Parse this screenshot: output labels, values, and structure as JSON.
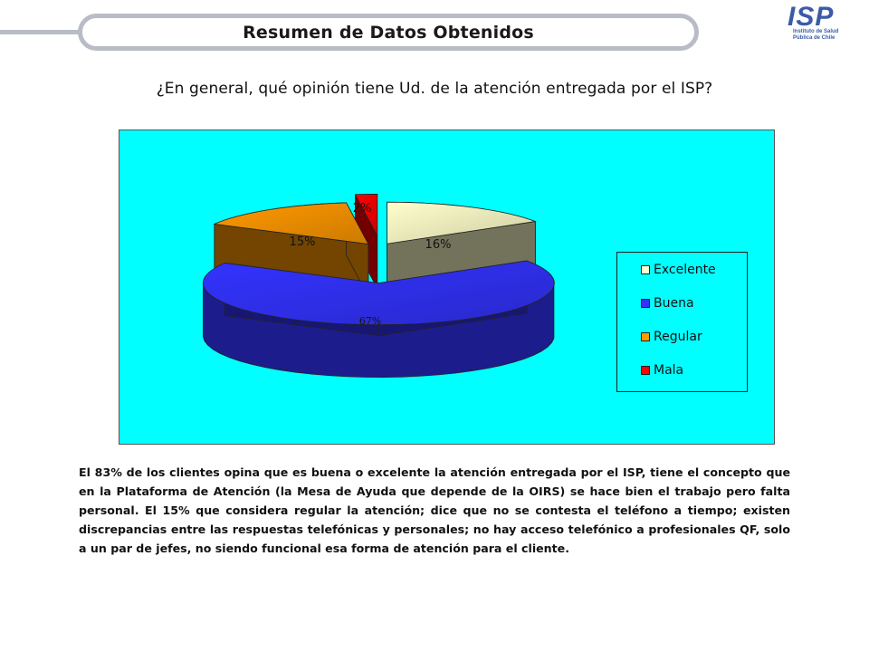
{
  "header": {
    "title": "Resumen de Datos Obtenidos",
    "logo_mark": "ISP",
    "logo_subtitle": "Instituto de Salud Pública de Chile"
  },
  "question": "¿En general, qué opinión tiene Ud. de la atención entregada por el ISP?",
  "chart_data": {
    "type": "pie",
    "title": "",
    "three_d": true,
    "legend_position": "right",
    "categories": [
      "Excelente",
      "Buena",
      "Regular",
      "Mala"
    ],
    "values": [
      16,
      67,
      15,
      2
    ],
    "data_labels": [
      "16%",
      "67%",
      "15%",
      "2%"
    ],
    "colors": [
      "#ffffcc",
      "#3333ff",
      "#ff9900",
      "#ff0000"
    ],
    "background": "#00ffff"
  },
  "footnote": "El 83% de los clientes opina que es buena o excelente la atención entregada por el ISP, tiene el concepto que en la Plataforma de Atención (la Mesa de Ayuda que depende de la OIRS) se hace bien el trabajo pero falta personal. El 15% que considera regular la atención; dice que no se contesta el teléfono a tiempo; existen discrepancias entre las respuestas telefónicas y personales; no hay acceso telefónico a profesionales QF, solo a un par de jefes, no siendo funcional esa forma de atención para el cliente."
}
